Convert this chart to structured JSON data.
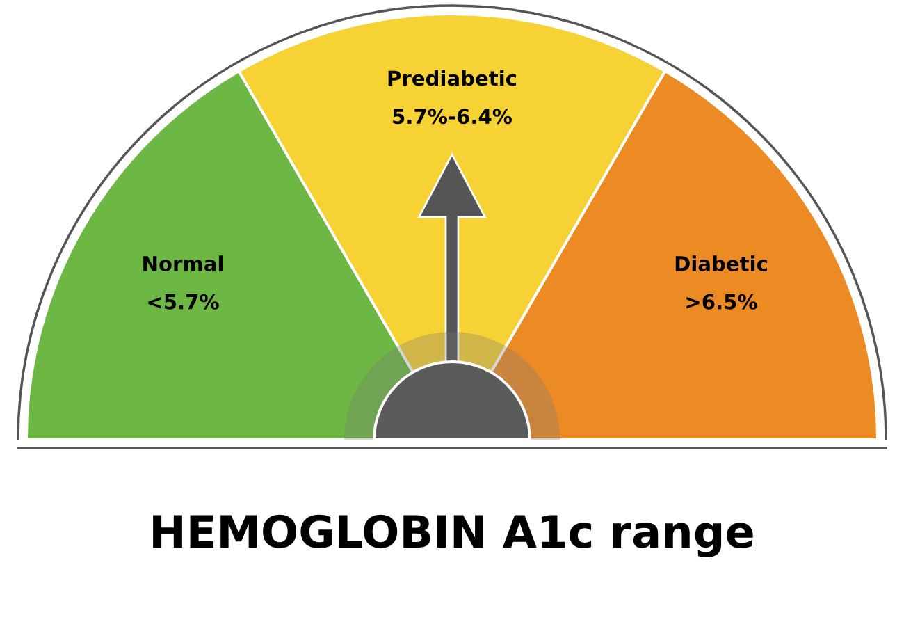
{
  "chart_data": {
    "type": "donut",
    "title": "HEMOGLOBIN A1c range",
    "categories": [
      "Normal\n<5.7%",
      "Prediabetic\n5.7%-6.4%",
      "Diabetic\n>6.5%"
    ],
    "values": [
      33.3,
      33.4,
      33.3
    ],
    "colors": [
      "#6db844",
      "#f6d234",
      "#ec8a24"
    ],
    "needle": "Prediabetic\n5.7%-6.4%"
  }
}
